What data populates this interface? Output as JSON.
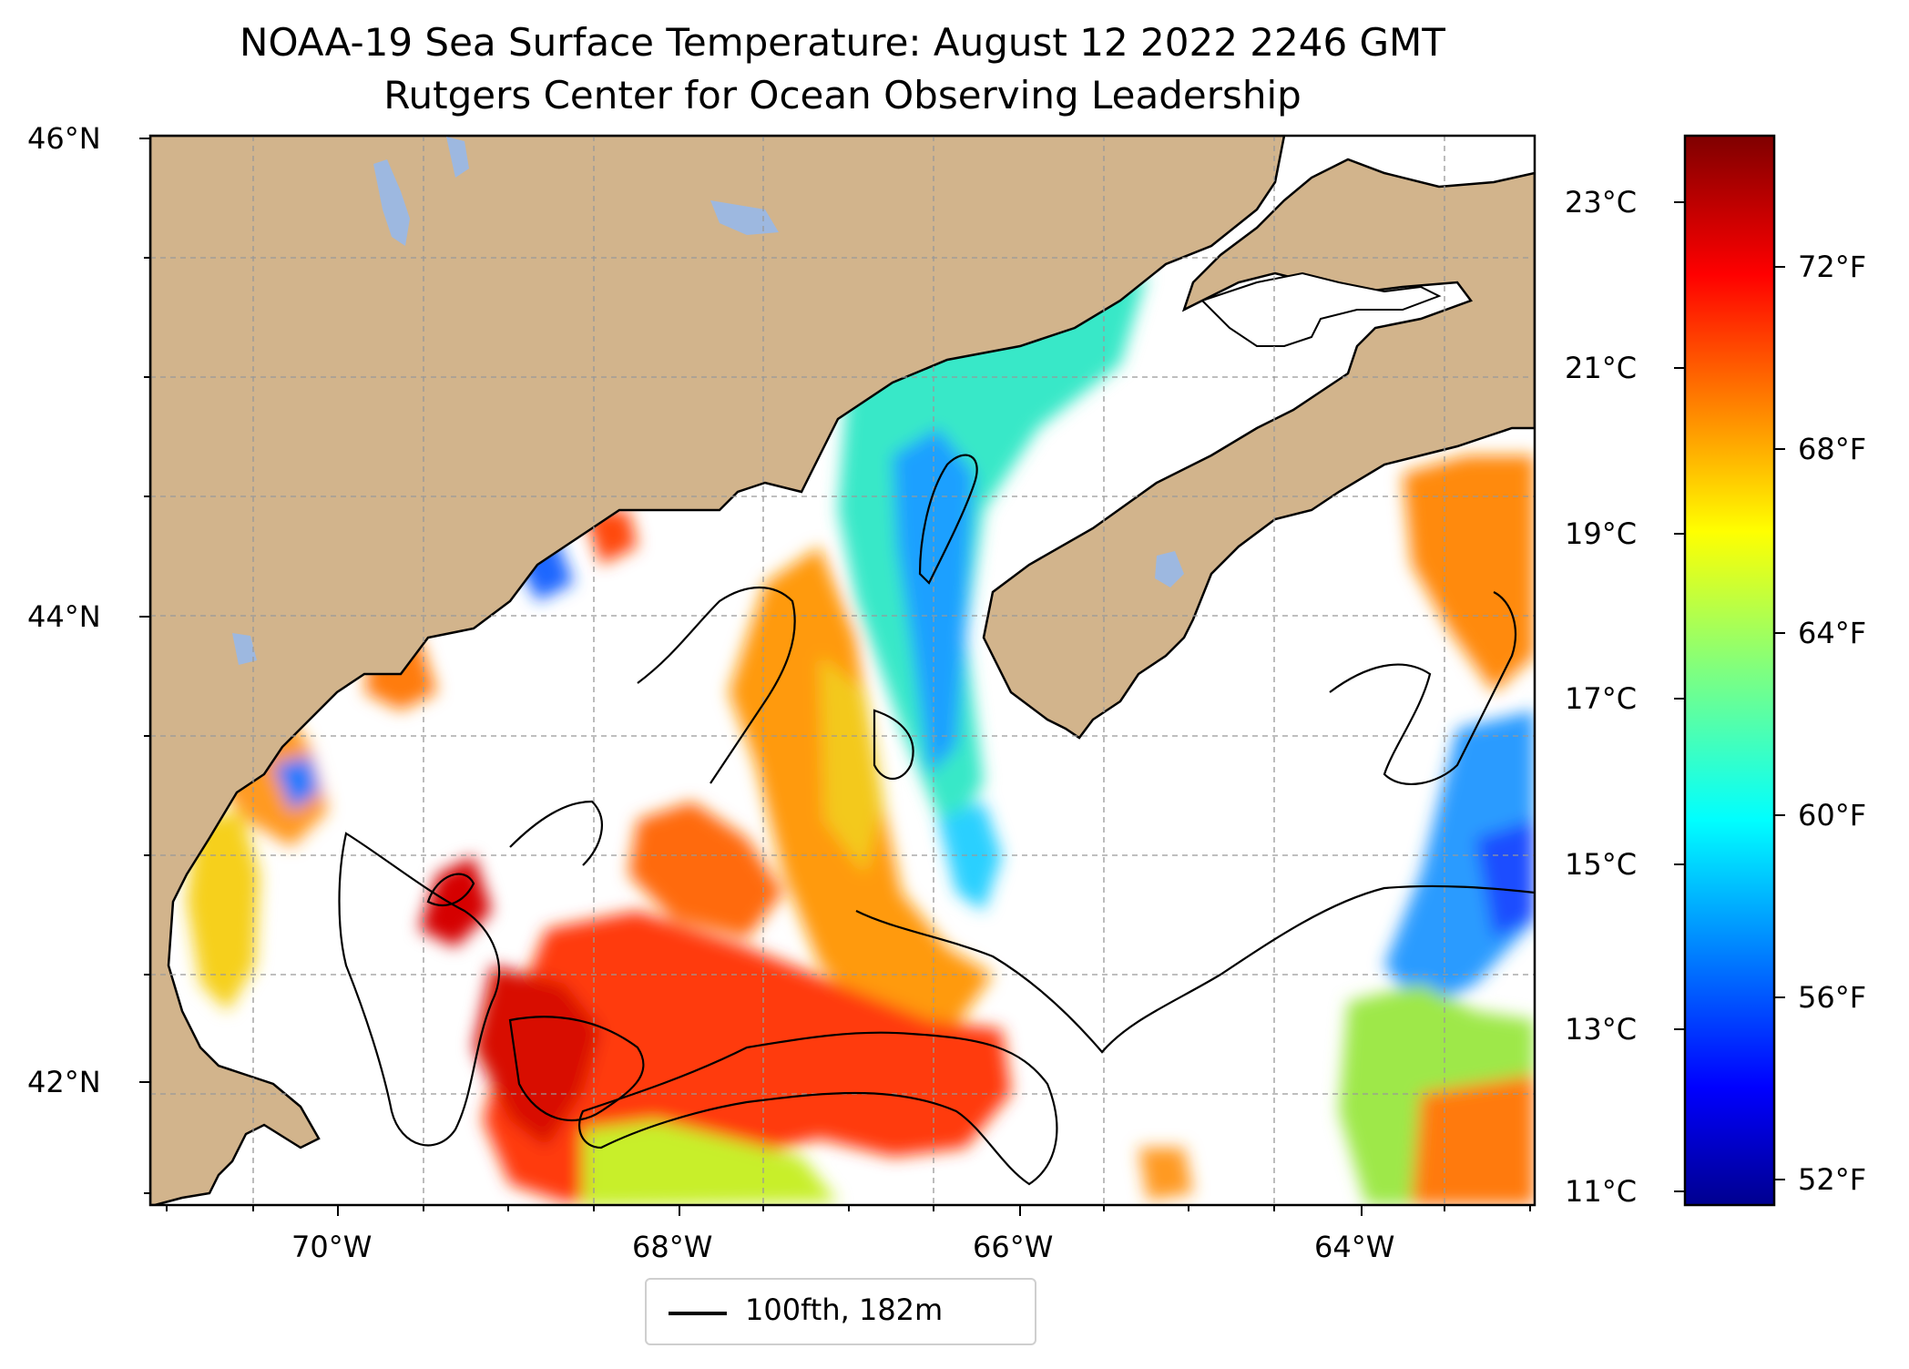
{
  "title": {
    "line1": "NOAA-19 Sea Surface Temperature: August 12 2022 2246 GMT",
    "line2": "Rutgers Center for Ocean Observing Leadership"
  },
  "map": {
    "land_color": "#d2b48c",
    "ocean_nodata_color": "#ffffff",
    "lake_color": "#9db8e0",
    "coastline_color": "#000000",
    "lat_labels": [
      "46°N",
      "44°N",
      "42°N"
    ],
    "lon_labels": [
      "70°W",
      "68°W",
      "66°W",
      "64°W"
    ]
  },
  "legend": {
    "label": "100fth, 182m",
    "line_color": "#000000"
  },
  "colorbar": {
    "colormap": "jet",
    "celsius_labels": [
      "23°C",
      "21°C",
      "19°C",
      "17°C",
      "15°C",
      "13°C",
      "11°C"
    ],
    "fahrenheit_labels": [
      "72°F",
      "68°F",
      "64°F",
      "60°F",
      "56°F",
      "52°F"
    ]
  }
}
